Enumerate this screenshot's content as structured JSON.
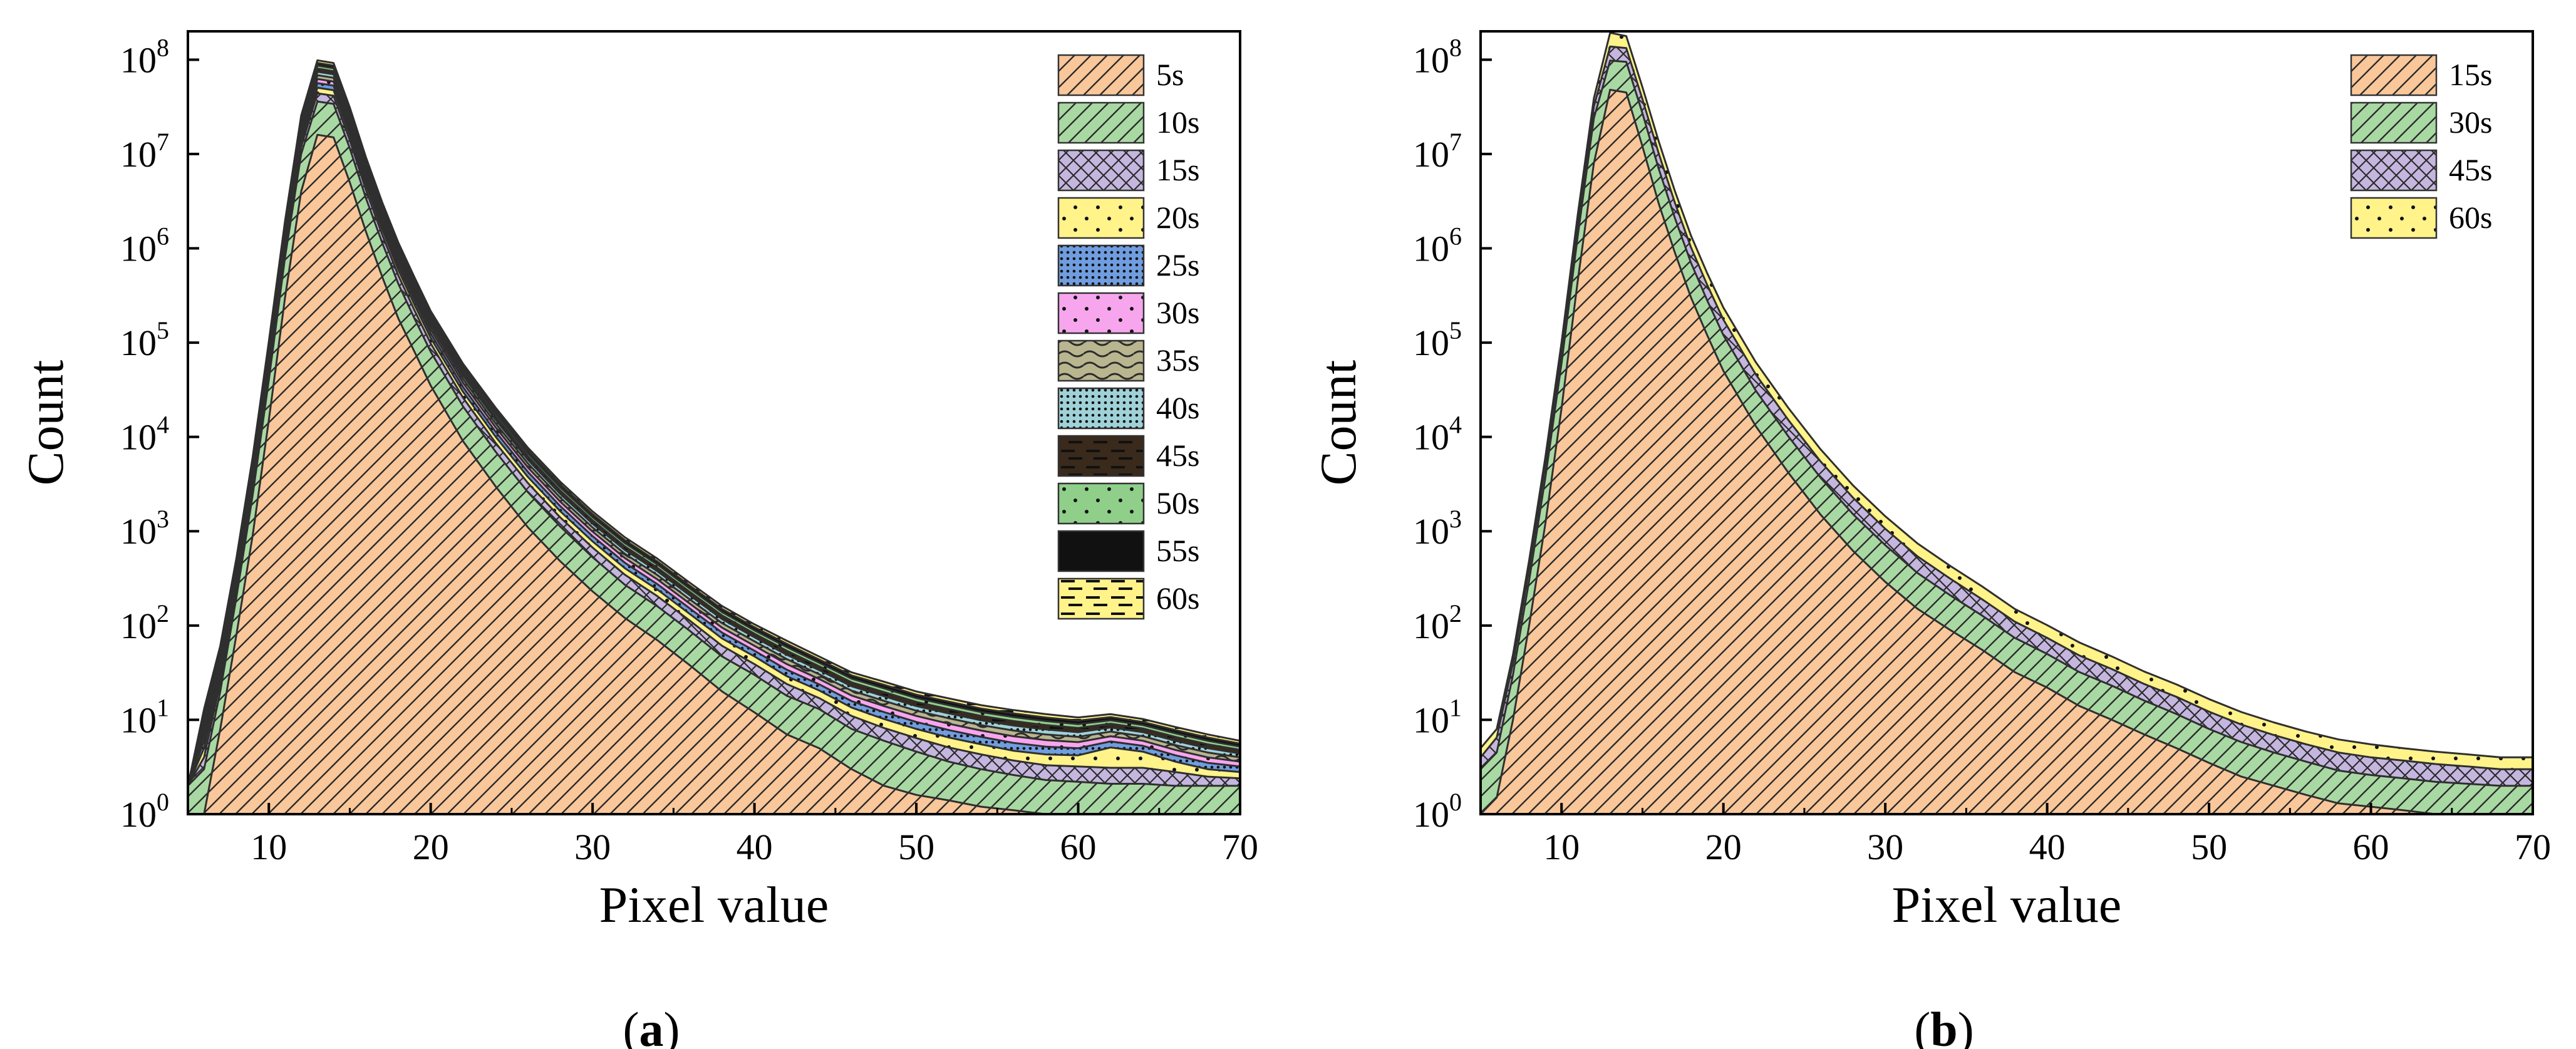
{
  "chart_data": [
    {
      "type": "area",
      "stacked": true,
      "caption": "(a)",
      "caption_letter": "a",
      "xlabel": "Pixel value",
      "ylabel": "Count",
      "xlim": [
        5,
        70
      ],
      "ylim": [
        1,
        200000000
      ],
      "yscale": "log",
      "xticks": [
        10,
        20,
        30,
        40,
        50,
        60,
        70
      ],
      "yticks": [
        {
          "value": 1,
          "base": "10",
          "exp": "0"
        },
        {
          "value": 10,
          "base": "10",
          "exp": "1"
        },
        {
          "value": 100,
          "base": "10",
          "exp": "2"
        },
        {
          "value": 1000,
          "base": "10",
          "exp": "3"
        },
        {
          "value": 10000,
          "base": "10",
          "exp": "4"
        },
        {
          "value": 100000,
          "base": "10",
          "exp": "5"
        },
        {
          "value": 1000000,
          "base": "10",
          "exp": "6"
        },
        {
          "value": 10000000,
          "base": "10",
          "exp": "7"
        },
        {
          "value": 100000000,
          "base": "10",
          "exp": "8"
        }
      ],
      "legend_position": "top-right",
      "x": [
        5,
        6,
        7,
        8,
        9,
        10,
        11,
        12,
        13,
        14,
        15,
        16,
        17,
        18,
        19,
        20,
        22,
        24,
        26,
        28,
        30,
        32,
        34,
        36,
        38,
        40,
        42,
        44,
        46,
        48,
        50,
        52,
        54,
        56,
        58,
        60,
        62,
        64,
        66,
        68,
        70
      ],
      "series": [
        {
          "name": "5s",
          "pattern": "diag",
          "color": "#f9c79a",
          "values": [
            1,
            1,
            8,
            80,
            900,
            15000,
            300000,
            4000000,
            16000000,
            15000000,
            5000000,
            1500000,
            500000,
            180000,
            80000,
            35000,
            9000,
            3000,
            1100,
            480,
            230,
            120,
            70,
            38,
            20,
            12,
            7,
            5,
            3,
            2,
            1.6,
            1.4,
            1.2,
            1.1,
            1,
            1,
            1,
            1,
            1,
            1,
            1
          ]
        },
        {
          "name": "10s",
          "pattern": "diag",
          "color": "#a9d9a3",
          "values": [
            1,
            2,
            12,
            120,
            1500,
            25000,
            500000,
            6000000,
            20000000,
            19000000,
            6500000,
            1900000,
            650000,
            240000,
            100000,
            45000,
            12000,
            4000,
            1500,
            640,
            300,
            150,
            90,
            50,
            27,
            18,
            11,
            8,
            5,
            4,
            3,
            2.2,
            1.8,
            1.5,
            1.3,
            1.2,
            1.1,
            1.1,
            1,
            1,
            1
          ]
        },
        {
          "name": "15s",
          "pattern": "cross",
          "color": "#c5b6df",
          "values": [
            0,
            1,
            5,
            45,
            500,
            8000,
            150000,
            2000000,
            8000000,
            7500000,
            2500000,
            750000,
            250000,
            95000,
            40000,
            18000,
            5000,
            1700,
            650,
            280,
            140,
            75,
            45,
            25,
            14,
            9,
            6,
            4,
            3,
            2.2,
            1.8,
            1.5,
            1.3,
            1.1,
            1,
            1,
            1,
            1,
            0.8,
            0.5,
            0.4
          ]
        },
        {
          "name": "20s",
          "pattern": "dots",
          "color": "#fff38a",
          "values": [
            0,
            1,
            4,
            35,
            400,
            6500,
            120000,
            1600000,
            6500000,
            6000000,
            2000000,
            600000,
            200000,
            75000,
            32000,
            14000,
            4000,
            1400,
            520,
            230,
            110,
            60,
            36,
            20,
            12,
            8,
            5,
            3.5,
            2.5,
            2,
            1.6,
            1.4,
            1.2,
            1,
            1,
            1,
            2,
            1.5,
            0.8,
            0.5,
            0.4
          ]
        },
        {
          "name": "25s",
          "pattern": "fine",
          "color": "#6f9de0",
          "values": [
            0,
            1,
            4,
            30,
            350,
            6000,
            110000,
            1500000,
            6000000,
            5600000,
            1900000,
            560000,
            185000,
            70000,
            30000,
            13000,
            3700,
            1300,
            490,
            215,
            105,
            57,
            34,
            19,
            11,
            7,
            5,
            3.3,
            2.3,
            1.9,
            1.5,
            1.3,
            1.1,
            1,
            0.9,
            0.8,
            0.8,
            0.7,
            0.6,
            0.5,
            0.4
          ]
        },
        {
          "name": "30s",
          "pattern": "dots",
          "color": "#f7a6ee",
          "values": [
            0,
            1,
            4,
            30,
            350,
            6000,
            110000,
            1500000,
            6000000,
            5600000,
            1900000,
            560000,
            185000,
            70000,
            30000,
            13000,
            3700,
            1300,
            490,
            215,
            105,
            57,
            34,
            19,
            11,
            7,
            5,
            3.3,
            2.3,
            1.9,
            1.5,
            1.3,
            1.1,
            1,
            0.9,
            0.8,
            0.8,
            0.7,
            0.6,
            0.5,
            0.4
          ]
        },
        {
          "name": "35s",
          "pattern": "wave",
          "color": "#b9b58f",
          "values": [
            0,
            1,
            4,
            30,
            350,
            6000,
            110000,
            1500000,
            6000000,
            5600000,
            1900000,
            560000,
            185000,
            70000,
            30000,
            13000,
            3700,
            1300,
            490,
            215,
            105,
            57,
            34,
            19,
            11,
            7,
            5,
            3.3,
            2.3,
            1.9,
            1.5,
            1.3,
            1.1,
            1,
            0.9,
            0.8,
            0.8,
            0.7,
            0.6,
            0.5,
            0.4
          ]
        },
        {
          "name": "40s",
          "pattern": "fine",
          "color": "#9fd2d8",
          "values": [
            0,
            1,
            4,
            30,
            350,
            6000,
            110000,
            1500000,
            6000000,
            5600000,
            1900000,
            560000,
            185000,
            70000,
            30000,
            13000,
            3700,
            1300,
            490,
            215,
            105,
            57,
            34,
            19,
            11,
            7,
            5,
            3.3,
            2.3,
            1.9,
            1.5,
            1.3,
            1.1,
            1,
            0.9,
            0.8,
            0.8,
            0.7,
            0.6,
            0.5,
            0.4
          ]
        },
        {
          "name": "45s",
          "pattern": "dash",
          "color": "#3a2a1c",
          "values": [
            0,
            1,
            4,
            30,
            350,
            6000,
            110000,
            1500000,
            6000000,
            5600000,
            1900000,
            560000,
            185000,
            70000,
            30000,
            13000,
            3700,
            1300,
            490,
            215,
            105,
            57,
            34,
            19,
            11,
            7,
            5,
            3.3,
            2.3,
            1.9,
            1.5,
            1.3,
            1.1,
            1,
            0.9,
            0.8,
            0.8,
            0.7,
            0.6,
            0.5,
            0.4
          ]
        },
        {
          "name": "50s",
          "pattern": "dots",
          "color": "#8fcf8a",
          "values": [
            0,
            1,
            4,
            30,
            350,
            6000,
            110000,
            1500000,
            6000000,
            5600000,
            1900000,
            560000,
            185000,
            70000,
            30000,
            13000,
            3700,
            1300,
            490,
            215,
            105,
            57,
            34,
            19,
            11,
            7,
            5,
            3.3,
            2.3,
            1.9,
            1.5,
            1.3,
            1.1,
            1,
            0.9,
            0.8,
            0.8,
            0.7,
            0.6,
            0.5,
            0.4
          ]
        },
        {
          "name": "55s",
          "pattern": "dots",
          "color": "#111111",
          "values": [
            0,
            1,
            4,
            30,
            350,
            6000,
            110000,
            1500000,
            6000000,
            5600000,
            1900000,
            560000,
            185000,
            70000,
            30000,
            13000,
            3700,
            1300,
            490,
            215,
            105,
            57,
            34,
            19,
            11,
            7,
            5,
            3.3,
            2.3,
            1.9,
            1.5,
            1.3,
            1.1,
            1,
            0.9,
            0.8,
            0.8,
            0.7,
            0.6,
            0.5,
            0.4
          ]
        },
        {
          "name": "60s",
          "pattern": "dash",
          "color": "#fff38a",
          "values": [
            0,
            1,
            4,
            30,
            350,
            6000,
            110000,
            1500000,
            6000000,
            5600000,
            1900000,
            560000,
            185000,
            70000,
            30000,
            13000,
            3700,
            1300,
            490,
            215,
            105,
            57,
            34,
            19,
            11,
            7,
            5,
            3.3,
            2.3,
            1.9,
            1.5,
            1.3,
            1.1,
            1,
            0.9,
            0.8,
            0.8,
            0.7,
            0.6,
            0.5,
            0.4
          ]
        }
      ]
    },
    {
      "type": "area",
      "stacked": true,
      "caption": "(b)",
      "caption_letter": "b",
      "xlabel": "Pixel value",
      "ylabel": "Count",
      "xlim": [
        5,
        70
      ],
      "ylim": [
        1,
        200000000
      ],
      "yscale": "log",
      "xticks": [
        10,
        20,
        30,
        40,
        50,
        60,
        70
      ],
      "yticks": [
        {
          "value": 1,
          "base": "10",
          "exp": "0"
        },
        {
          "value": 10,
          "base": "10",
          "exp": "1"
        },
        {
          "value": 100,
          "base": "10",
          "exp": "2"
        },
        {
          "value": 1000,
          "base": "10",
          "exp": "3"
        },
        {
          "value": 10000,
          "base": "10",
          "exp": "4"
        },
        {
          "value": 100000,
          "base": "10",
          "exp": "5"
        },
        {
          "value": 1000000,
          "base": "10",
          "exp": "6"
        },
        {
          "value": 10000000,
          "base": "10",
          "exp": "7"
        },
        {
          "value": 100000000,
          "base": "10",
          "exp": "8"
        }
      ],
      "legend_position": "top-right",
      "x": [
        5,
        6,
        7,
        8,
        9,
        10,
        11,
        12,
        13,
        14,
        15,
        16,
        17,
        18,
        19,
        20,
        22,
        24,
        26,
        28,
        30,
        32,
        34,
        36,
        38,
        40,
        42,
        44,
        46,
        48,
        50,
        52,
        54,
        56,
        58,
        60,
        62,
        64,
        66,
        68,
        70
      ],
      "series": [
        {
          "name": "15s",
          "pattern": "diag",
          "color": "#f9c79a",
          "values": [
            1,
            1.5,
            10,
            100,
            1200,
            20000,
            450000,
            8000000,
            48000000,
            45000000,
            12000000,
            3000000,
            900000,
            300000,
            120000,
            50000,
            13000,
            4200,
            1500,
            620,
            290,
            150,
            90,
            55,
            32,
            22,
            14,
            10,
            7,
            5,
            3.5,
            2.5,
            2,
            1.6,
            1.3,
            1.2,
            1.1,
            1,
            1,
            1,
            1
          ]
        },
        {
          "name": "30s",
          "pattern": "diag",
          "color": "#a9d9a3",
          "values": [
            2,
            3,
            20,
            200,
            2500,
            40000,
            900000,
            16000000,
            50000000,
            50000000,
            15000000,
            4000000,
            1200000,
            400000,
            160000,
            70000,
            18000,
            6000,
            2200,
            900,
            420,
            210,
            120,
            72,
            42,
            28,
            18,
            13,
            9,
            6.5,
            4.5,
            3.3,
            2.5,
            2,
            1.6,
            1.4,
            1.3,
            1.2,
            1.1,
            1,
            1
          ]
        },
        {
          "name": "45s",
          "pattern": "cross",
          "color": "#c5b6df",
          "values": [
            1,
            2,
            10,
            100,
            1300,
            22000,
            500000,
            8000000,
            40000000,
            38000000,
            11000000,
            3200000,
            950000,
            320000,
            130000,
            55000,
            15000,
            5000,
            1800,
            750,
            350,
            180,
            105,
            62,
            36,
            24,
            16,
            11.5,
            8,
            6,
            4.2,
            3.1,
            2.4,
            1.9,
            1.6,
            1.4,
            1.3,
            1.2,
            1.1,
            1,
            1
          ]
        },
        {
          "name": "60s",
          "pattern": "dots",
          "color": "#fff38a",
          "values": [
            1,
            1.5,
            9,
            90,
            1100,
            18000,
            420000,
            7000000,
            55000000,
            45000000,
            13000000,
            3500000,
            1000000,
            340000,
            135000,
            60000,
            16000,
            5200,
            1900,
            800,
            380,
            200,
            115,
            70,
            40,
            27,
            18,
            12.5,
            8.5,
            6.2,
            4.4,
            3.2,
            2.5,
            2,
            1.7,
            1.5,
            1.3,
            1.2,
            1.1,
            1,
            1
          ]
        }
      ]
    }
  ]
}
